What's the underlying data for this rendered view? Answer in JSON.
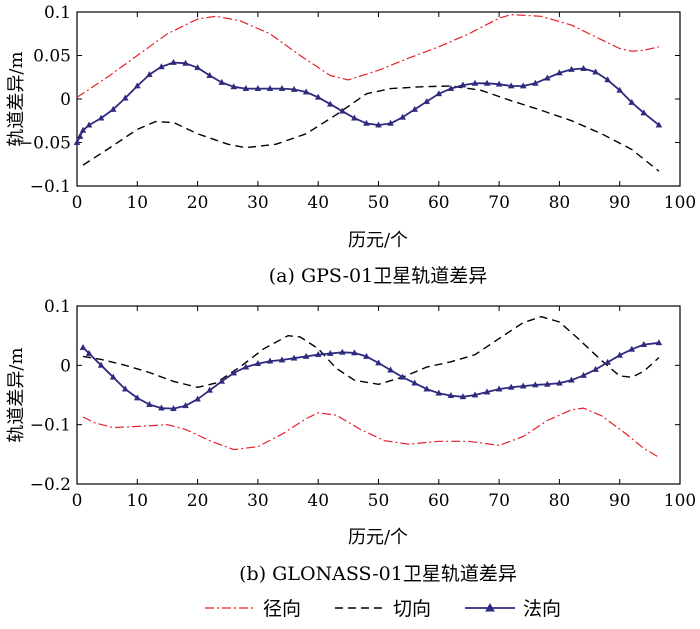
{
  "colors": {
    "radial": "#e8202a",
    "tangential": "#000000",
    "normal": "#2e2a7e",
    "axis": "#000000"
  },
  "legend": {
    "radial": "径向",
    "tangential": "切向",
    "normal": "法向"
  },
  "chart_data": [
    {
      "type": "line",
      "caption": "(a) GPS-01卫星轨道差异",
      "xlabel": "历元/个",
      "ylabel": "轨道差异/m",
      "xlim": [
        0,
        100
      ],
      "ylim": [
        -0.1,
        0.1
      ],
      "xticks": [
        0,
        10,
        20,
        30,
        40,
        50,
        60,
        70,
        80,
        90,
        100
      ],
      "yticks": [
        -0.1,
        -0.05,
        0,
        0.05,
        0.1
      ],
      "ytick_labels": [
        "−0.1",
        "−0.05",
        "0",
        "0.05",
        "0.1"
      ],
      "series": [
        {
          "name": "径向",
          "key": "radial",
          "style": "dashdot",
          "points": [
            [
              0,
              0.002
            ],
            [
              5,
              0.025
            ],
            [
              10,
              0.05
            ],
            [
              15,
              0.075
            ],
            [
              20,
              0.092
            ],
            [
              23,
              0.095
            ],
            [
              27,
              0.09
            ],
            [
              32,
              0.075
            ],
            [
              37,
              0.05
            ],
            [
              42,
              0.027
            ],
            [
              45,
              0.022
            ],
            [
              50,
              0.033
            ],
            [
              55,
              0.047
            ],
            [
              60,
              0.06
            ],
            [
              65,
              0.075
            ],
            [
              70,
              0.093
            ],
            [
              72,
              0.097
            ],
            [
              77,
              0.095
            ],
            [
              82,
              0.085
            ],
            [
              87,
              0.068
            ],
            [
              90,
              0.058
            ],
            [
              92,
              0.055
            ],
            [
              94,
              0.056
            ],
            [
              96.5,
              0.06
            ]
          ]
        },
        {
          "name": "切向",
          "key": "tangential",
          "style": "dash",
          "points": [
            [
              1,
              -0.076
            ],
            [
              5,
              -0.058
            ],
            [
              10,
              -0.035
            ],
            [
              13,
              -0.026
            ],
            [
              16,
              -0.027
            ],
            [
              20,
              -0.04
            ],
            [
              25,
              -0.052
            ],
            [
              28,
              -0.056
            ],
            [
              33,
              -0.052
            ],
            [
              38,
              -0.04
            ],
            [
              43,
              -0.018
            ],
            [
              48,
              0.006
            ],
            [
              52,
              0.012
            ],
            [
              57,
              0.014
            ],
            [
              62,
              0.015
            ],
            [
              67,
              0.01
            ],
            [
              72,
              -0.002
            ],
            [
              77,
              -0.013
            ],
            [
              82,
              -0.025
            ],
            [
              87,
              -0.04
            ],
            [
              92,
              -0.058
            ],
            [
              96.5,
              -0.083
            ]
          ]
        },
        {
          "name": "法向",
          "key": "normal",
          "style": "solid-triangle",
          "points": [
            [
              0,
              -0.05
            ],
            [
              0.5,
              -0.043
            ],
            [
              1,
              -0.036
            ],
            [
              2,
              -0.03
            ],
            [
              4,
              -0.022
            ],
            [
              6,
              -0.012
            ],
            [
              8,
              0.001
            ],
            [
              10,
              0.015
            ],
            [
              12,
              0.028
            ],
            [
              14,
              0.037
            ],
            [
              16,
              0.042
            ],
            [
              18,
              0.041
            ],
            [
              20,
              0.036
            ],
            [
              22,
              0.027
            ],
            [
              24,
              0.019
            ],
            [
              26,
              0.014
            ],
            [
              28,
              0.012
            ],
            [
              30,
              0.012
            ],
            [
              32,
              0.012
            ],
            [
              34,
              0.012
            ],
            [
              36,
              0.011
            ],
            [
              38,
              0.008
            ],
            [
              40,
              0.002
            ],
            [
              42,
              -0.006
            ],
            [
              44,
              -0.014
            ],
            [
              46,
              -0.022
            ],
            [
              48,
              -0.028
            ],
            [
              50,
              -0.03
            ],
            [
              52,
              -0.028
            ],
            [
              54,
              -0.021
            ],
            [
              56,
              -0.012
            ],
            [
              58,
              -0.003
            ],
            [
              60,
              0.006
            ],
            [
              62,
              0.012
            ],
            [
              64,
              0.016
            ],
            [
              66,
              0.018
            ],
            [
              68,
              0.018
            ],
            [
              70,
              0.017
            ],
            [
              72,
              0.015
            ],
            [
              74,
              0.015
            ],
            [
              76,
              0.018
            ],
            [
              78,
              0.024
            ],
            [
              80,
              0.03
            ],
            [
              82,
              0.034
            ],
            [
              84,
              0.035
            ],
            [
              86,
              0.031
            ],
            [
              88,
              0.022
            ],
            [
              90,
              0.01
            ],
            [
              92,
              -0.004
            ],
            [
              94,
              -0.016
            ],
            [
              96.5,
              -0.03
            ]
          ]
        }
      ]
    },
    {
      "type": "line",
      "caption": "(b) GLONASS-01卫星轨道差异",
      "xlabel": "历元/个",
      "ylabel": "轨道差异/m",
      "xlim": [
        0,
        100
      ],
      "ylim": [
        -0.2,
        0.1
      ],
      "xticks": [
        0,
        10,
        20,
        30,
        40,
        50,
        60,
        70,
        80,
        90,
        100
      ],
      "yticks": [
        -0.2,
        -0.1,
        0,
        0.1
      ],
      "ytick_labels": [
        "−0.2",
        "−0.1",
        "0",
        "0.1"
      ],
      "series": [
        {
          "name": "径向",
          "key": "radial",
          "style": "dashdot",
          "points": [
            [
              1,
              -0.087
            ],
            [
              3,
              -0.097
            ],
            [
              6,
              -0.105
            ],
            [
              10,
              -0.103
            ],
            [
              15,
              -0.1
            ],
            [
              18,
              -0.108
            ],
            [
              22,
              -0.127
            ],
            [
              26,
              -0.142
            ],
            [
              30,
              -0.137
            ],
            [
              34,
              -0.116
            ],
            [
              38,
              -0.09
            ],
            [
              40,
              -0.08
            ],
            [
              43,
              -0.084
            ],
            [
              47,
              -0.108
            ],
            [
              51,
              -0.127
            ],
            [
              55,
              -0.133
            ],
            [
              60,
              -0.128
            ],
            [
              65,
              -0.128
            ],
            [
              70,
              -0.135
            ],
            [
              74,
              -0.12
            ],
            [
              78,
              -0.093
            ],
            [
              82,
              -0.075
            ],
            [
              84,
              -0.072
            ],
            [
              87,
              -0.085
            ],
            [
              91,
              -0.115
            ],
            [
              94,
              -0.14
            ],
            [
              96.5,
              -0.155
            ]
          ]
        },
        {
          "name": "切向",
          "key": "tangential",
          "style": "dash",
          "points": [
            [
              1,
              0.015
            ],
            [
              4,
              0.01
            ],
            [
              8,
              0.0
            ],
            [
              12,
              -0.012
            ],
            [
              16,
              -0.027
            ],
            [
              20,
              -0.037
            ],
            [
              23,
              -0.03
            ],
            [
              27,
              -0.003
            ],
            [
              31,
              0.028
            ],
            [
              35,
              0.05
            ],
            [
              37,
              0.048
            ],
            [
              40,
              0.028
            ],
            [
              43,
              -0.005
            ],
            [
              46,
              -0.025
            ],
            [
              50,
              -0.032
            ],
            [
              54,
              -0.02
            ],
            [
              58,
              -0.003
            ],
            [
              62,
              0.006
            ],
            [
              66,
              0.018
            ],
            [
              70,
              0.045
            ],
            [
              74,
              0.072
            ],
            [
              77,
              0.082
            ],
            [
              80,
              0.073
            ],
            [
              83,
              0.046
            ],
            [
              87,
              0.008
            ],
            [
              90,
              -0.018
            ],
            [
              92,
              -0.02
            ],
            [
              94,
              -0.01
            ],
            [
              96.5,
              0.013
            ]
          ]
        },
        {
          "name": "法向",
          "key": "normal",
          "style": "solid-triangle",
          "points": [
            [
              1,
              0.03
            ],
            [
              2,
              0.02
            ],
            [
              4,
              0.0
            ],
            [
              6,
              -0.02
            ],
            [
              8,
              -0.04
            ],
            [
              10,
              -0.055
            ],
            [
              12,
              -0.066
            ],
            [
              14,
              -0.072
            ],
            [
              16,
              -0.073
            ],
            [
              18,
              -0.068
            ],
            [
              20,
              -0.057
            ],
            [
              22,
              -0.042
            ],
            [
              24,
              -0.027
            ],
            [
              26,
              -0.013
            ],
            [
              28,
              -0.003
            ],
            [
              30,
              0.003
            ],
            [
              32,
              0.007
            ],
            [
              34,
              0.009
            ],
            [
              36,
              0.012
            ],
            [
              38,
              0.015
            ],
            [
              40,
              0.018
            ],
            [
              42,
              0.02
            ],
            [
              44,
              0.022
            ],
            [
              46,
              0.021
            ],
            [
              48,
              0.015
            ],
            [
              50,
              0.004
            ],
            [
              52,
              -0.008
            ],
            [
              54,
              -0.02
            ],
            [
              56,
              -0.03
            ],
            [
              58,
              -0.04
            ],
            [
              60,
              -0.047
            ],
            [
              62,
              -0.051
            ],
            [
              64,
              -0.053
            ],
            [
              66,
              -0.05
            ],
            [
              68,
              -0.045
            ],
            [
              70,
              -0.04
            ],
            [
              72,
              -0.037
            ],
            [
              74,
              -0.035
            ],
            [
              76,
              -0.033
            ],
            [
              78,
              -0.032
            ],
            [
              80,
              -0.03
            ],
            [
              82,
              -0.025
            ],
            [
              84,
              -0.017
            ],
            [
              86,
              -0.007
            ],
            [
              88,
              0.005
            ],
            [
              90,
              0.017
            ],
            [
              92,
              0.027
            ],
            [
              94,
              0.035
            ],
            [
              96.5,
              0.038
            ]
          ]
        }
      ]
    }
  ]
}
